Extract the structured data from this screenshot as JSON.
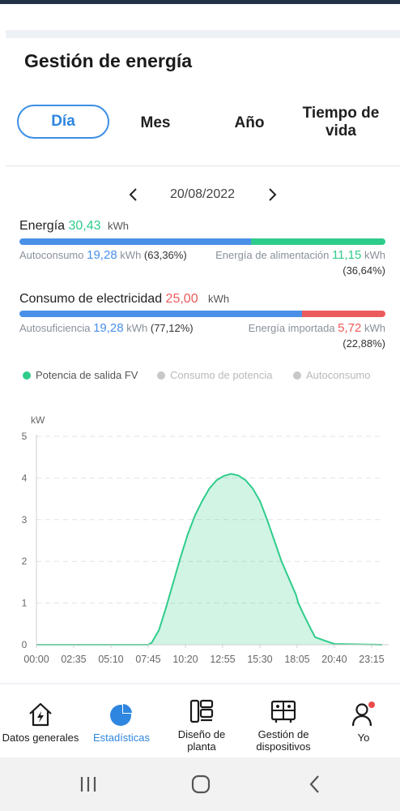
{
  "page": {
    "title": "Gestión de energía"
  },
  "tabs": [
    {
      "label": "Día",
      "active": true
    },
    {
      "label": "Mes"
    },
    {
      "label": "Año"
    },
    {
      "label": "Tiempo de vida"
    }
  ],
  "date": "20/08/2022",
  "energy": {
    "label": "Energía",
    "value": "30,43",
    "unit": "kWh",
    "autoconsumo": {
      "label": "Autoconsumo",
      "value": "19,28",
      "unit": "kWh",
      "pct": "(63,36%)",
      "fraction": 0.6336
    },
    "alimentacion": {
      "label": "Energía de alimentación",
      "value": "11,15",
      "unit": "kWh",
      "pct": "(36,64%)"
    }
  },
  "consumption": {
    "label": "Consumo de electricidad",
    "value": "25,00",
    "unit": "kWh",
    "autosuficiencia": {
      "label": "Autosuficiencia",
      "value": "19,28",
      "unit": "kWh",
      "pct": "(77,12%)",
      "fraction": 0.7712
    },
    "importada": {
      "label": "Energía importada",
      "value": "5,72",
      "unit": "kWh",
      "pct": "(22,88%)"
    }
  },
  "colors": {
    "blue": "#4a90e8",
    "green": "#2ecc8a",
    "red": "#ec5b5b",
    "grey": "#c8c8c8"
  },
  "legend": [
    {
      "label": "Potencia de salida FV",
      "active": true
    },
    {
      "label": "Consumo de potencia",
      "active": false
    },
    {
      "label": "Autoconsumo",
      "active": false
    }
  ],
  "chart_data": {
    "type": "area",
    "ylabel": "kW",
    "ylim": [
      0,
      5
    ],
    "yticks": [
      "0",
      "1",
      "2",
      "3",
      "4",
      "5"
    ],
    "xticks": [
      "00:00",
      "02:35",
      "05:10",
      "07:45",
      "10:20",
      "12:55",
      "15:30",
      "18:05",
      "20:40",
      "23:15"
    ],
    "grid": true,
    "series": [
      {
        "name": "Potencia de salida FV",
        "x": [
          "00:00",
          "07:45",
          "08:00",
          "08:30",
          "09:00",
          "09:30",
          "10:00",
          "10:30",
          "11:00",
          "11:30",
          "12:00",
          "12:30",
          "13:00",
          "13:30",
          "14:00",
          "14:30",
          "15:00",
          "15:30",
          "16:00",
          "16:30",
          "17:00",
          "17:30",
          "18:00",
          "18:10",
          "18:30",
          "19:00",
          "19:20",
          "20:00",
          "20:40",
          "23:59"
        ],
        "values": [
          0,
          0,
          0.05,
          0.35,
          0.9,
          1.5,
          2.1,
          2.65,
          3.1,
          3.45,
          3.75,
          3.95,
          4.05,
          4.1,
          4.06,
          3.95,
          3.75,
          3.45,
          3.0,
          2.5,
          2.0,
          1.6,
          1.2,
          1.0,
          0.75,
          0.4,
          0.18,
          0.1,
          0.02,
          0
        ]
      }
    ]
  },
  "bottom_nav": [
    {
      "label": "Datos generales",
      "icon": "home-bolt-icon"
    },
    {
      "label": "Estadísticas",
      "icon": "pie-chart-icon",
      "active": true
    },
    {
      "label": "Diseño de planta",
      "icon": "layout-icon"
    },
    {
      "label": "Gestión de dispositivos",
      "icon": "devices-icon"
    },
    {
      "label": "Yo",
      "icon": "user-icon"
    }
  ]
}
